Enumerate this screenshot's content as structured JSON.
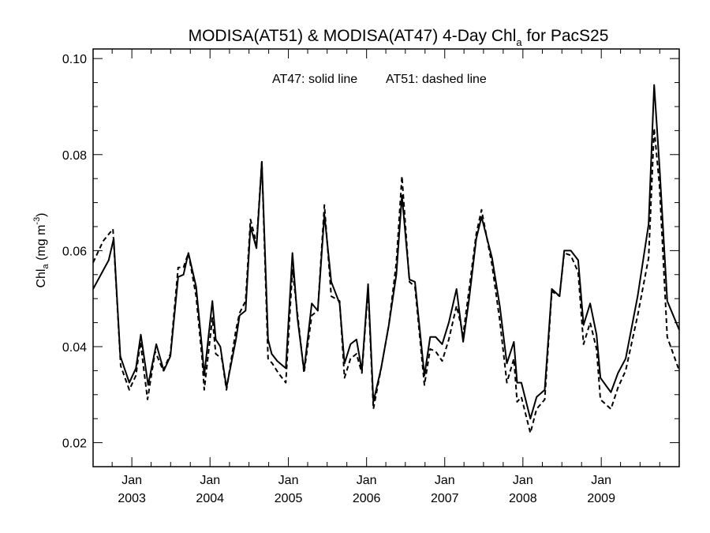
{
  "chart_data": {
    "type": "line",
    "title": {
      "main_pre": "MODISA(AT51) & MODISA(AT47) 4-Day Chl",
      "main_sub": "a",
      "main_post": " for PacS25"
    },
    "annotation": {
      "solid": "AT47: solid line",
      "dashed": "AT51: dashed line"
    },
    "ylabel": {
      "pre": "Chl",
      "sub": "a",
      "mid": " (mg m",
      "sup": "-3",
      "post": ")"
    },
    "ylim": [
      0.015,
      0.102
    ],
    "yticks": [
      "0.02",
      "0.04",
      "0.06",
      "0.08",
      "0.10"
    ],
    "xlim": [
      "2002-07-04",
      "2009-12-31"
    ],
    "xticks": [
      {
        "date": "2003-01-01",
        "month": "Jan",
        "year": "2003"
      },
      {
        "date": "2004-01-01",
        "month": "Jan",
        "year": "2004"
      },
      {
        "date": "2005-01-01",
        "month": "Jan",
        "year": "2005"
      },
      {
        "date": "2006-01-01",
        "month": "Jan",
        "year": "2006"
      },
      {
        "date": "2007-01-01",
        "month": "Jan",
        "year": "2007"
      },
      {
        "date": "2008-01-01",
        "month": "Jan",
        "year": "2008"
      },
      {
        "date": "2009-01-01",
        "month": "Jan",
        "year": "2009"
      }
    ],
    "series": [
      {
        "name": "AT47",
        "style": "solid",
        "color": "#000000",
        "points": [
          [
            "2002-07-04",
            0.052
          ],
          [
            "2002-09-15",
            0.058
          ],
          [
            "2002-10-08",
            0.0625
          ],
          [
            "2002-11-08",
            0.038
          ],
          [
            "2002-12-20",
            0.0325
          ],
          [
            "2003-01-20",
            0.0355
          ],
          [
            "2003-02-12",
            0.0425
          ],
          [
            "2003-03-18",
            0.032
          ],
          [
            "2003-04-25",
            0.0405
          ],
          [
            "2003-05-30",
            0.035
          ],
          [
            "2003-06-30",
            0.038
          ],
          [
            "2003-08-05",
            0.0545
          ],
          [
            "2003-08-30",
            0.055
          ],
          [
            "2003-09-22",
            0.0595
          ],
          [
            "2003-10-28",
            0.0525
          ],
          [
            "2003-11-25",
            0.0395
          ],
          [
            "2003-12-05",
            0.034
          ],
          [
            "2004-01-12",
            0.0495
          ],
          [
            "2004-01-28",
            0.0415
          ],
          [
            "2004-02-18",
            0.04
          ],
          [
            "2004-03-18",
            0.0315
          ],
          [
            "2004-05-01",
            0.0415
          ],
          [
            "2004-05-18",
            0.0465
          ],
          [
            "2004-06-15",
            0.0475
          ],
          [
            "2004-07-08",
            0.065
          ],
          [
            "2004-08-05",
            0.0605
          ],
          [
            "2004-08-30",
            0.0785
          ],
          [
            "2004-09-28",
            0.0415
          ],
          [
            "2004-10-15",
            0.0385
          ],
          [
            "2004-11-10",
            0.037
          ],
          [
            "2004-12-20",
            0.0355
          ],
          [
            "2005-01-20",
            0.0595
          ],
          [
            "2005-02-12",
            0.046
          ],
          [
            "2005-03-15",
            0.035
          ],
          [
            "2005-04-20",
            0.049
          ],
          [
            "2005-05-18",
            0.0475
          ],
          [
            "2005-06-18",
            0.0675
          ],
          [
            "2005-07-20",
            0.0535
          ],
          [
            "2005-08-28",
            0.049
          ],
          [
            "2005-09-20",
            0.0365
          ],
          [
            "2005-10-18",
            0.0405
          ],
          [
            "2005-11-15",
            0.0415
          ],
          [
            "2005-12-10",
            0.035
          ],
          [
            "2006-01-08",
            0.053
          ],
          [
            "2006-02-02",
            0.0285
          ],
          [
            "2006-03-10",
            0.0355
          ],
          [
            "2006-04-15",
            0.0445
          ],
          [
            "2006-05-20",
            0.055
          ],
          [
            "2006-06-15",
            0.0715
          ],
          [
            "2006-07-20",
            0.054
          ],
          [
            "2006-08-15",
            0.0535
          ],
          [
            "2006-09-28",
            0.034
          ],
          [
            "2006-10-25",
            0.042
          ],
          [
            "2006-11-20",
            0.042
          ],
          [
            "2006-12-20",
            0.0405
          ],
          [
            "2007-01-20",
            0.045
          ],
          [
            "2007-02-25",
            0.052
          ],
          [
            "2007-03-28",
            0.041
          ],
          [
            "2007-04-25",
            0.05
          ],
          [
            "2007-05-28",
            0.0625
          ],
          [
            "2007-06-22",
            0.067
          ],
          [
            "2007-08-10",
            0.0585
          ],
          [
            "2007-09-15",
            0.0485
          ],
          [
            "2007-10-18",
            0.0365
          ],
          [
            "2007-11-20",
            0.041
          ],
          [
            "2007-12-05",
            0.0325
          ],
          [
            "2007-12-25",
            0.0325
          ],
          [
            "2008-02-05",
            0.025
          ],
          [
            "2008-03-05",
            0.0295
          ],
          [
            "2008-04-12",
            0.031
          ],
          [
            "2008-05-15",
            0.052
          ],
          [
            "2008-06-20",
            0.0505
          ],
          [
            "2008-07-12",
            0.06
          ],
          [
            "2008-08-12",
            0.06
          ],
          [
            "2008-09-15",
            0.058
          ],
          [
            "2008-10-10",
            0.0445
          ],
          [
            "2008-11-10",
            0.049
          ],
          [
            "2008-12-10",
            0.0425
          ],
          [
            "2008-12-28",
            0.0335
          ],
          [
            "2009-02-15",
            0.0305
          ],
          [
            "2009-03-20",
            0.0345
          ],
          [
            "2009-04-25",
            0.0375
          ],
          [
            "2009-06-20",
            0.0505
          ],
          [
            "2009-08-10",
            0.0655
          ],
          [
            "2009-09-05",
            0.0945
          ],
          [
            "2009-09-30",
            0.0775
          ],
          [
            "2009-11-05",
            0.0495
          ],
          [
            "2009-12-31",
            0.0435
          ]
        ]
      },
      {
        "name": "AT51",
        "style": "dashed",
        "color": "#000000",
        "points": [
          [
            "2002-07-04",
            0.0575
          ],
          [
            "2002-08-20",
            0.062
          ],
          [
            "2002-10-05",
            0.0645
          ],
          [
            "2002-11-10",
            0.036
          ],
          [
            "2002-12-20",
            0.031
          ],
          [
            "2003-01-20",
            0.034
          ],
          [
            "2003-02-10",
            0.041
          ],
          [
            "2003-03-15",
            0.029
          ],
          [
            "2003-04-20",
            0.039
          ],
          [
            "2003-05-28",
            0.035
          ],
          [
            "2003-06-30",
            0.0385
          ],
          [
            "2003-08-05",
            0.0565
          ],
          [
            "2003-08-30",
            0.0565
          ],
          [
            "2003-09-22",
            0.0595
          ],
          [
            "2003-10-28",
            0.0505
          ],
          [
            "2003-11-25",
            0.0375
          ],
          [
            "2003-12-05",
            0.031
          ],
          [
            "2004-01-12",
            0.046
          ],
          [
            "2004-01-28",
            0.0385
          ],
          [
            "2004-02-25",
            0.0375
          ],
          [
            "2004-03-18",
            0.031
          ],
          [
            "2004-05-01",
            0.0435
          ],
          [
            "2004-05-18",
            0.047
          ],
          [
            "2004-06-15",
            0.0495
          ],
          [
            "2004-07-08",
            0.0665
          ],
          [
            "2004-08-05",
            0.0615
          ],
          [
            "2004-08-30",
            0.0785
          ],
          [
            "2004-09-28",
            0.0375
          ],
          [
            "2004-10-18",
            0.0365
          ],
          [
            "2004-11-15",
            0.0345
          ],
          [
            "2004-12-20",
            0.0325
          ],
          [
            "2005-01-20",
            0.056
          ],
          [
            "2005-02-12",
            0.047
          ],
          [
            "2005-03-15",
            0.0345
          ],
          [
            "2005-04-20",
            0.0465
          ],
          [
            "2005-05-18",
            0.0475
          ],
          [
            "2005-06-18",
            0.0695
          ],
          [
            "2005-07-20",
            0.0505
          ],
          [
            "2005-08-28",
            0.0495
          ],
          [
            "2005-09-20",
            0.0335
          ],
          [
            "2005-10-18",
            0.0375
          ],
          [
            "2005-11-15",
            0.0385
          ],
          [
            "2005-12-10",
            0.0345
          ],
          [
            "2006-01-08",
            0.052
          ],
          [
            "2006-02-02",
            0.027
          ],
          [
            "2006-03-10",
            0.0355
          ],
          [
            "2006-04-15",
            0.0445
          ],
          [
            "2006-05-20",
            0.0575
          ],
          [
            "2006-06-15",
            0.0755
          ],
          [
            "2006-07-20",
            0.0535
          ],
          [
            "2006-08-15",
            0.0525
          ],
          [
            "2006-09-28",
            0.032
          ],
          [
            "2006-10-25",
            0.0395
          ],
          [
            "2006-11-20",
            0.039
          ],
          [
            "2006-12-20",
            0.037
          ],
          [
            "2007-01-20",
            0.0415
          ],
          [
            "2007-02-25",
            0.0485
          ],
          [
            "2007-03-28",
            0.0425
          ],
          [
            "2007-04-25",
            0.052
          ],
          [
            "2007-05-28",
            0.0635
          ],
          [
            "2007-06-22",
            0.0685
          ],
          [
            "2007-08-10",
            0.057
          ],
          [
            "2007-09-15",
            0.0455
          ],
          [
            "2007-10-18",
            0.0325
          ],
          [
            "2007-11-20",
            0.0375
          ],
          [
            "2007-12-05",
            0.0285
          ],
          [
            "2007-12-25",
            0.0295
          ],
          [
            "2008-02-05",
            0.022
          ],
          [
            "2008-03-05",
            0.027
          ],
          [
            "2008-04-12",
            0.029
          ],
          [
            "2008-05-15",
            0.0515
          ],
          [
            "2008-06-20",
            0.0505
          ],
          [
            "2008-07-12",
            0.0595
          ],
          [
            "2008-08-12",
            0.059
          ],
          [
            "2008-09-15",
            0.0555
          ],
          [
            "2008-10-10",
            0.0405
          ],
          [
            "2008-11-10",
            0.045
          ],
          [
            "2008-12-10",
            0.0395
          ],
          [
            "2008-12-28",
            0.029
          ],
          [
            "2009-02-15",
            0.027
          ],
          [
            "2009-03-20",
            0.0315
          ],
          [
            "2009-04-25",
            0.035
          ],
          [
            "2009-06-20",
            0.0465
          ],
          [
            "2009-08-10",
            0.0585
          ],
          [
            "2009-09-05",
            0.0855
          ],
          [
            "2009-09-30",
            0.0735
          ],
          [
            "2009-11-05",
            0.042
          ],
          [
            "2009-12-31",
            0.035
          ]
        ]
      }
    ]
  }
}
